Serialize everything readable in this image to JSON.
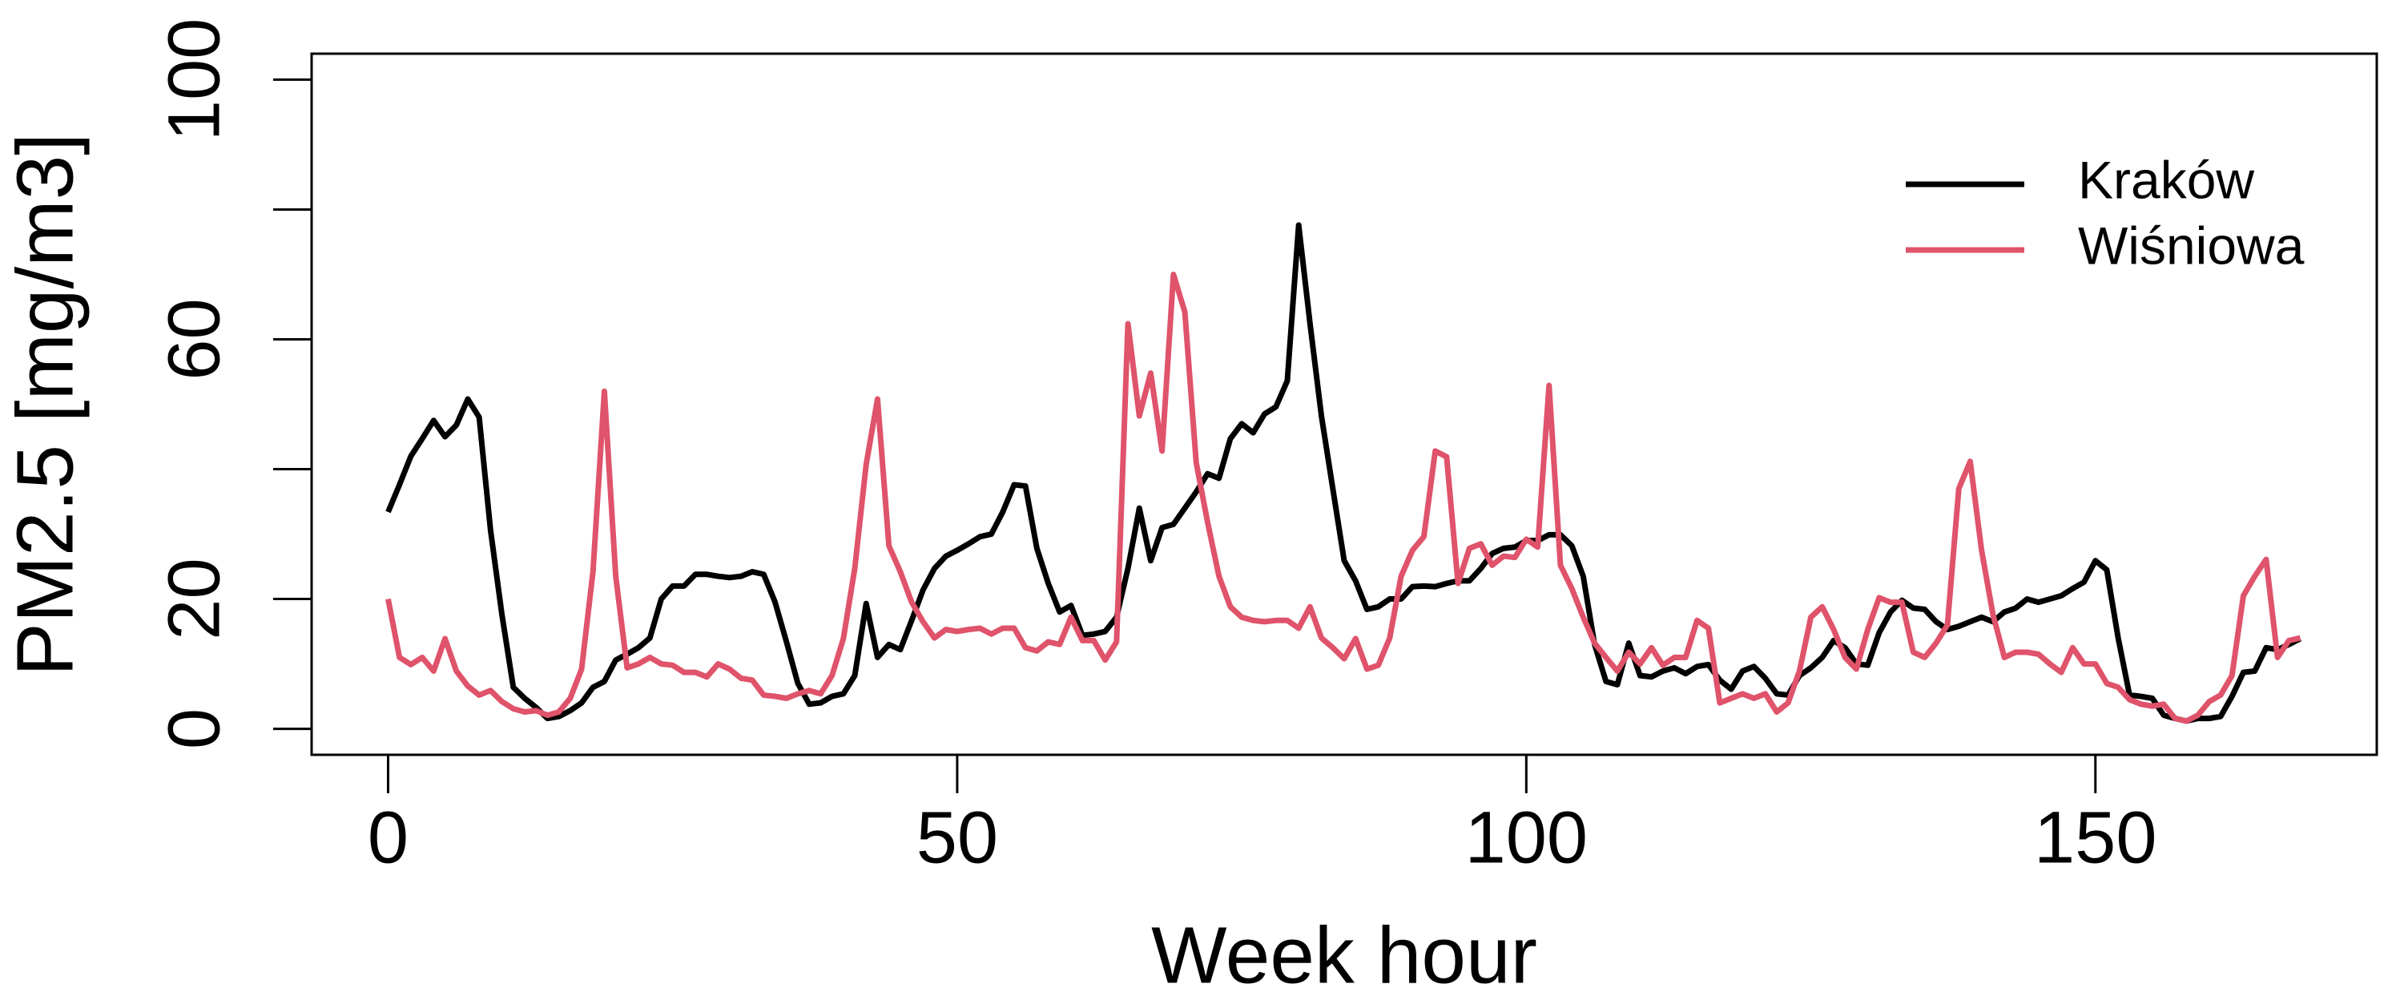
{
  "chart_data": {
    "type": "line",
    "xlabel": "Week hour",
    "ylabel": "PM2.5 [mg/m3]",
    "x": [
      0,
      1,
      2,
      3,
      4,
      5,
      6,
      7,
      8,
      9,
      10,
      11,
      12,
      13,
      14,
      15,
      16,
      17,
      18,
      19,
      20,
      21,
      22,
      23,
      24,
      25,
      26,
      27,
      28,
      29,
      30,
      31,
      32,
      33,
      34,
      35,
      36,
      37,
      38,
      39,
      40,
      41,
      42,
      43,
      44,
      45,
      46,
      47,
      48,
      49,
      50,
      51,
      52,
      53,
      54,
      55,
      56,
      57,
      58,
      59,
      60,
      61,
      62,
      63,
      64,
      65,
      66,
      67,
      68,
      69,
      70,
      71,
      72,
      73,
      74,
      75,
      76,
      77,
      78,
      79,
      80,
      81,
      82,
      83,
      84,
      85,
      86,
      87,
      88,
      89,
      90,
      91,
      92,
      93,
      94,
      95,
      96,
      97,
      98,
      99,
      100,
      101,
      102,
      103,
      104,
      105,
      106,
      107,
      108,
      109,
      110,
      111,
      112,
      113,
      114,
      115,
      116,
      117,
      118,
      119,
      120,
      121,
      122,
      123,
      124,
      125,
      126,
      127,
      128,
      129,
      130,
      131,
      132,
      133,
      134,
      135,
      136,
      137,
      138,
      139,
      140,
      141,
      142,
      143,
      144,
      145,
      146,
      147,
      148,
      149,
      150,
      151,
      152,
      153,
      154,
      155,
      156,
      157,
      158,
      159,
      160,
      161,
      162,
      163,
      164,
      165,
      166,
      167,
      168
    ],
    "series": [
      {
        "name": "Kraków",
        "color": "#000000",
        "values": [
          33.4,
          37.6,
          42,
          44.7,
          47.5,
          45,
          46.8,
          50.8,
          48,
          30.6,
          17.6,
          6.4,
          4.7,
          3.3,
          1.6,
          1.9,
          2.8,
          4,
          6.4,
          7.3,
          10.6,
          11.5,
          12.5,
          14,
          20,
          22,
          22,
          23.8,
          23.8,
          23.5,
          23.3,
          23.5,
          24.2,
          23.8,
          19.5,
          13.4,
          7,
          3.8,
          4,
          5,
          5.4,
          8.2,
          19.3,
          11,
          13,
          12.2,
          16.7,
          21.4,
          24.7,
          26.6,
          27.5,
          28.5,
          29.6,
          30,
          33.4,
          37.6,
          37.4,
          27.8,
          22.4,
          18,
          19,
          14.4,
          14.6,
          15,
          17.2,
          24.7,
          34,
          25.9,
          31,
          31.5,
          34,
          36.5,
          39.3,
          38.6,
          44.7,
          47,
          45.6,
          48.5,
          49.6,
          53.6,
          77.6,
          62.4,
          48.2,
          37,
          25.9,
          22.8,
          18.4,
          18.8,
          20,
          20,
          21.9,
          22,
          21.9,
          22.4,
          22.8,
          22.8,
          24.7,
          27,
          27.8,
          28,
          29,
          29,
          29.9,
          29.9,
          28.2,
          23.5,
          13,
          7.3,
          6.8,
          13.2,
          8.2,
          8,
          8.9,
          9.4,
          8.5,
          9.6,
          9.9,
          7.5,
          6.1,
          8.9,
          9.6,
          7.8,
          5.4,
          5.2,
          8.2,
          9.4,
          11,
          13.6,
          12.5,
          10,
          9.8,
          14.8,
          18,
          19.8,
          18.6,
          18.4,
          16.5,
          15.3,
          15.8,
          16.5,
          17.2,
          16.5,
          18,
          18.6,
          20,
          19.5,
          20,
          20.5,
          21.6,
          22.6,
          25.9,
          24.5,
          14,
          5.2,
          5,
          4.7,
          2.1,
          1.6,
          1.2,
          1.6,
          1.6,
          1.9,
          5,
          8.7,
          8.9,
          12.5,
          12.2,
          13,
          13.9
        ]
      },
      {
        "name": "Wiśniowa",
        "color": "#DF536B",
        "values": [
          20,
          11,
          9.9,
          11,
          8.9,
          13.9,
          8.9,
          6.6,
          5.2,
          5.9,
          4.2,
          3.1,
          2.6,
          2.8,
          2.1,
          2.6,
          4.7,
          9.2,
          24.2,
          52,
          23.5,
          9.4,
          10,
          11,
          10,
          9.8,
          8.7,
          8.7,
          8,
          10,
          9.2,
          7.8,
          7.5,
          5.2,
          5,
          4.7,
          5.4,
          5.9,
          5.4,
          8.2,
          13.9,
          24.7,
          40.7,
          50.8,
          28.2,
          24.2,
          19.5,
          16.5,
          14,
          15.3,
          15,
          15.3,
          15.5,
          14.6,
          15.5,
          15.5,
          12.5,
          12,
          13.4,
          13,
          17.2,
          13.6,
          13.6,
          10.6,
          13.4,
          62.4,
          48.2,
          54.8,
          42.8,
          70,
          64.2,
          41,
          31.8,
          23.5,
          18.8,
          17.2,
          16.7,
          16.5,
          16.7,
          16.7,
          15.5,
          18.8,
          14,
          12.5,
          10.8,
          13.9,
          9.2,
          9.8,
          14,
          23.5,
          27.5,
          29.6,
          42.8,
          41.9,
          22.4,
          27.8,
          28.5,
          25.2,
          26.6,
          26.4,
          29.2,
          28,
          52.9,
          25.2,
          21.6,
          17.2,
          13.2,
          11,
          8.9,
          11.8,
          10,
          12.5,
          9.8,
          11,
          11,
          16.7,
          15.5,
          4,
          4.7,
          5.4,
          4.7,
          5.4,
          2.6,
          4,
          8.9,
          17.2,
          18.8,
          15.3,
          11,
          9.2,
          15.3,
          20.2,
          19.5,
          19.5,
          11.8,
          11,
          13.2,
          16,
          37,
          41.2,
          27.5,
          17.6,
          11,
          11.8,
          11.8,
          11.5,
          10,
          8.7,
          12.5,
          10,
          10,
          7,
          6.4,
          4.5,
          3.8,
          3.5,
          3.8,
          1.6,
          1.2,
          2.1,
          4.2,
          5.2,
          8.2,
          20.5,
          23.5,
          26.1,
          11,
          13.6,
          14
        ]
      }
    ],
    "xlim": [
      -6.72,
      174.72
    ],
    "ylim": [
      -4,
      104
    ],
    "xticks": [
      0,
      50,
      100,
      150
    ],
    "yticks": [
      0,
      20,
      60,
      100
    ],
    "yticks_unlabeled": [
      40,
      80
    ],
    "legend": "top-right"
  }
}
